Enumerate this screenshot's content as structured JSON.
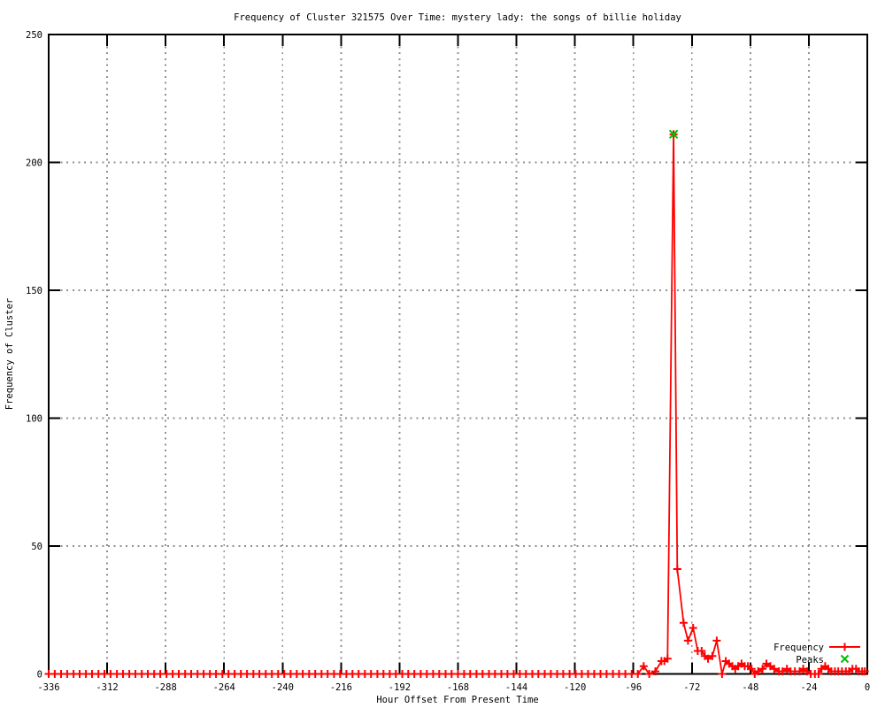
{
  "chart_data": {
    "type": "line",
    "title": "Frequency of Cluster 321575 Over Time: mystery lady: the songs of billie holiday",
    "xlabel": "Hour Offset From Present Time",
    "ylabel": "Frequency of Cluster",
    "grid": true,
    "legend_position": "bottom-right-inside",
    "grid_color": "#909090",
    "axis_color": "#000000",
    "x": {
      "label": "Hour Offset From Present Time",
      "min": -336,
      "max": 0,
      "ticks": [
        -336,
        -312,
        -288,
        -264,
        -240,
        -216,
        -192,
        -168,
        -144,
        -120,
        -96,
        -72,
        -48,
        -24,
        0
      ]
    },
    "y": {
      "label": "Frequency of Cluster",
      "min": 0,
      "max": 250,
      "ticks": [
        0,
        50,
        100,
        150,
        200,
        250
      ]
    },
    "series": [
      {
        "name": "Frequency",
        "color": "#ff0000",
        "style": "linespoints",
        "marker": "plus",
        "points": [
          [
            -336,
            0
          ],
          [
            -333.5,
            0
          ],
          [
            -330.9,
            0
          ],
          [
            -328.4,
            0
          ],
          [
            -325.8,
            0
          ],
          [
            -323.3,
            0
          ],
          [
            -320.7,
            0
          ],
          [
            -318.2,
            0
          ],
          [
            -315.6,
            0
          ],
          [
            -313.1,
            0
          ],
          [
            -310.6,
            0
          ],
          [
            -308,
            0
          ],
          [
            -305.5,
            0
          ],
          [
            -302.9,
            0
          ],
          [
            -300.4,
            0
          ],
          [
            -297.8,
            0
          ],
          [
            -295.3,
            0
          ],
          [
            -292.7,
            0
          ],
          [
            -290.2,
            0
          ],
          [
            -287.6,
            0
          ],
          [
            -285.1,
            0
          ],
          [
            -282.6,
            0
          ],
          [
            -280,
            0
          ],
          [
            -277.5,
            0
          ],
          [
            -274.9,
            0
          ],
          [
            -272.4,
            0
          ],
          [
            -269.8,
            0
          ],
          [
            -267.3,
            0
          ],
          [
            -264.7,
            0
          ],
          [
            -262.2,
            0
          ],
          [
            -259.7,
            0
          ],
          [
            -257.1,
            0
          ],
          [
            -254.6,
            0
          ],
          [
            -252,
            0
          ],
          [
            -249.5,
            0
          ],
          [
            -246.9,
            0
          ],
          [
            -244.4,
            0
          ],
          [
            -241.8,
            0
          ],
          [
            -239.3,
            0
          ],
          [
            -236.7,
            0
          ],
          [
            -234.2,
            0
          ],
          [
            -231.7,
            0
          ],
          [
            -229.1,
            0
          ],
          [
            -226.6,
            0
          ],
          [
            -224,
            0
          ],
          [
            -221.5,
            0
          ],
          [
            -218.9,
            0
          ],
          [
            -216.4,
            0
          ],
          [
            -213.8,
            0
          ],
          [
            -211.3,
            0
          ],
          [
            -208.8,
            0
          ],
          [
            -206.2,
            0
          ],
          [
            -203.7,
            0
          ],
          [
            -201.1,
            0
          ],
          [
            -198.6,
            0
          ],
          [
            -196,
            0
          ],
          [
            -193.5,
            0
          ],
          [
            -190.9,
            0
          ],
          [
            -188.4,
            0
          ],
          [
            -185.9,
            0
          ],
          [
            -183.3,
            0
          ],
          [
            -180.8,
            0
          ],
          [
            -178.2,
            0
          ],
          [
            -175.7,
            0
          ],
          [
            -173.1,
            0
          ],
          [
            -170.6,
            0
          ],
          [
            -168,
            0
          ],
          [
            -165.5,
            0
          ],
          [
            -163,
            0
          ],
          [
            -160.4,
            0
          ],
          [
            -157.9,
            0
          ],
          [
            -155.3,
            0
          ],
          [
            -152.8,
            0
          ],
          [
            -150.2,
            0
          ],
          [
            -147.7,
            0
          ],
          [
            -145.1,
            0
          ],
          [
            -142.6,
            0
          ],
          [
            -140.1,
            0
          ],
          [
            -137.5,
            0
          ],
          [
            -135,
            0
          ],
          [
            -132.4,
            0
          ],
          [
            -129.9,
            0
          ],
          [
            -127.3,
            0
          ],
          [
            -124.8,
            0
          ],
          [
            -122.2,
            0
          ],
          [
            -119.7,
            0
          ],
          [
            -117.2,
            0
          ],
          [
            -114.6,
            0
          ],
          [
            -112.1,
            0
          ],
          [
            -109.5,
            0
          ],
          [
            -107,
            0
          ],
          [
            -104.4,
            0
          ],
          [
            -101.9,
            0
          ],
          [
            -99.3,
            0
          ],
          [
            -96.7,
            0
          ],
          [
            -94.2,
            0
          ],
          [
            -91.8,
            3
          ],
          [
            -89.5,
            0
          ],
          [
            -87,
            1
          ],
          [
            -84.5,
            5
          ],
          [
            -83.3,
            5
          ],
          [
            -82,
            6
          ],
          [
            -79.5,
            211
          ],
          [
            -78,
            41
          ],
          [
            -75.4,
            20
          ],
          [
            -73.6,
            13
          ],
          [
            -71.5,
            18
          ],
          [
            -69.6,
            9
          ],
          [
            -68,
            9
          ],
          [
            -66.7,
            7
          ],
          [
            -65.4,
            6
          ],
          [
            -63.6,
            7
          ],
          [
            -61.8,
            13
          ],
          [
            -59.6,
            0
          ],
          [
            -58.1,
            5
          ],
          [
            -56.7,
            4
          ],
          [
            -55.4,
            3
          ],
          [
            -54.2,
            2
          ],
          [
            -53,
            3
          ],
          [
            -51.6,
            4
          ],
          [
            -50.3,
            3
          ],
          [
            -49,
            3
          ],
          [
            -47.5,
            2
          ],
          [
            -46.2,
            0
          ],
          [
            -44.8,
            1
          ],
          [
            -43,
            2
          ],
          [
            -41.4,
            4
          ],
          [
            -39.8,
            3
          ],
          [
            -38.2,
            2
          ],
          [
            -36.3,
            1
          ],
          [
            -34.8,
            1
          ],
          [
            -33,
            2
          ],
          [
            -31.5,
            1
          ],
          [
            -29.7,
            1
          ],
          [
            -27.8,
            1
          ],
          [
            -26.3,
            2
          ],
          [
            -24.7,
            1
          ],
          [
            -23.2,
            0
          ],
          [
            -21.5,
            0
          ],
          [
            -20,
            0
          ],
          [
            -18.8,
            2
          ],
          [
            -17.3,
            3
          ],
          [
            -16,
            2
          ],
          [
            -14.8,
            1
          ],
          [
            -13.3,
            1
          ],
          [
            -11.9,
            1
          ],
          [
            -10.4,
            1
          ],
          [
            -8.8,
            1
          ],
          [
            -7.5,
            1
          ],
          [
            -6.1,
            2
          ],
          [
            -4.6,
            2
          ],
          [
            -3.4,
            1
          ],
          [
            -2.1,
            1
          ],
          [
            -1,
            1
          ]
        ]
      },
      {
        "name": "Peaks",
        "color": "#00c000",
        "style": "points",
        "marker": "cross",
        "points": [
          [
            -79.5,
            211
          ]
        ]
      }
    ]
  }
}
